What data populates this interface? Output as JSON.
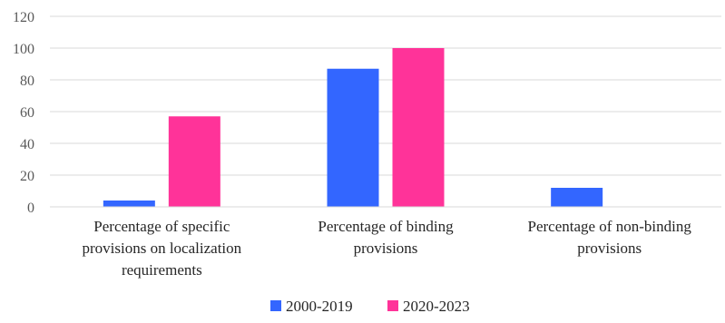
{
  "chart_data": {
    "type": "bar",
    "categories": [
      [
        "Percentage of specific",
        "provisions on localization",
        "requirements"
      ],
      [
        "Percentage of binding",
        "provisions"
      ],
      [
        "Percentage of non-binding",
        "provisions"
      ]
    ],
    "series": [
      {
        "name": "2000-2019",
        "color": "#3366ff",
        "values": [
          4,
          87,
          12
        ]
      },
      {
        "name": "2020-2023",
        "color": "#ff3399",
        "values": [
          57,
          100,
          0
        ]
      }
    ],
    "ylim": [
      0,
      120
    ],
    "yticks": [
      0,
      20,
      40,
      60,
      80,
      100,
      120
    ],
    "grid": true,
    "legend": "bottom-center"
  }
}
